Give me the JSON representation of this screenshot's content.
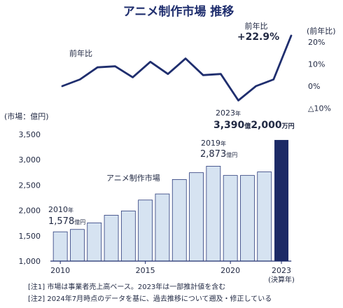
{
  "title": "アニメ制作市場 推移",
  "chart_data": [
    {
      "type": "line",
      "title": "",
      "series_label": "前年比",
      "axis_unit_label": "(前年比)",
      "x": [
        2010,
        2011,
        2012,
        2013,
        2014,
        2015,
        2016,
        2017,
        2018,
        2019,
        2020,
        2021,
        2022,
        2023
      ],
      "values": [
        0,
        3,
        8.5,
        9,
        4,
        11,
        5.5,
        12.5,
        5,
        5.5,
        -6.5,
        0,
        3,
        22.9
      ],
      "ylim": [
        -10,
        22
      ],
      "yticks": [
        {
          "value": 20,
          "label": "20%"
        },
        {
          "value": 10,
          "label": "10%"
        },
        {
          "value": 0,
          "label": "0%"
        },
        {
          "value": -10,
          "label": "△10%"
        }
      ],
      "annotation_last": {
        "heading": "前年比",
        "value": "+22.9%"
      },
      "color": "#1f2e6e"
    },
    {
      "type": "bar",
      "series_label": "アニメ制作市場",
      "ylabel": "(市場：億円)",
      "categories": [
        "2010",
        "2011",
        "2012",
        "2013",
        "2014",
        "2015",
        "2016",
        "2017",
        "2018",
        "2019",
        "2020",
        "2021",
        "2022",
        "2023"
      ],
      "values": [
        1578,
        1625,
        1755,
        1905,
        1990,
        2205,
        2325,
        2610,
        2745,
        2873,
        2690,
        2690,
        2760,
        3390.2
      ],
      "ylim": [
        1000,
        3500
      ],
      "yticks": [
        "1,000",
        "1,500",
        "2,000",
        "2,500",
        "3,000",
        "3,500"
      ],
      "xtick_labels": [
        {
          "index": 0,
          "label": "2010"
        },
        {
          "index": 5,
          "label": "2015"
        },
        {
          "index": 10,
          "label": "2020"
        },
        {
          "index": 13,
          "label": "2023"
        }
      ],
      "xtick_sub": "(決算年)",
      "bar_color": "#d6e3f1",
      "bar_border": "#2a3a7a",
      "highlight_color": "#1c2a66",
      "annotations": {
        "a2010": {
          "year": "2010",
          "suffix_year": "年",
          "value": "1,578",
          "unit": "億円"
        },
        "a2019": {
          "year": "2019",
          "suffix_year": "年",
          "value": "2,873",
          "unit": "億円"
        },
        "a2023": {
          "year": "2023",
          "suffix_year": "年",
          "v1": "3,390",
          "u1": "億",
          "v2": "2,000",
          "u2": "万円"
        }
      }
    }
  ],
  "notes": [
    "[注1] 市場は事業者売上高ベース。2023年は一部推計値を含む",
    "[注2] 2024年7月時点のデータを基に、過去推移について遡及・修正している"
  ]
}
